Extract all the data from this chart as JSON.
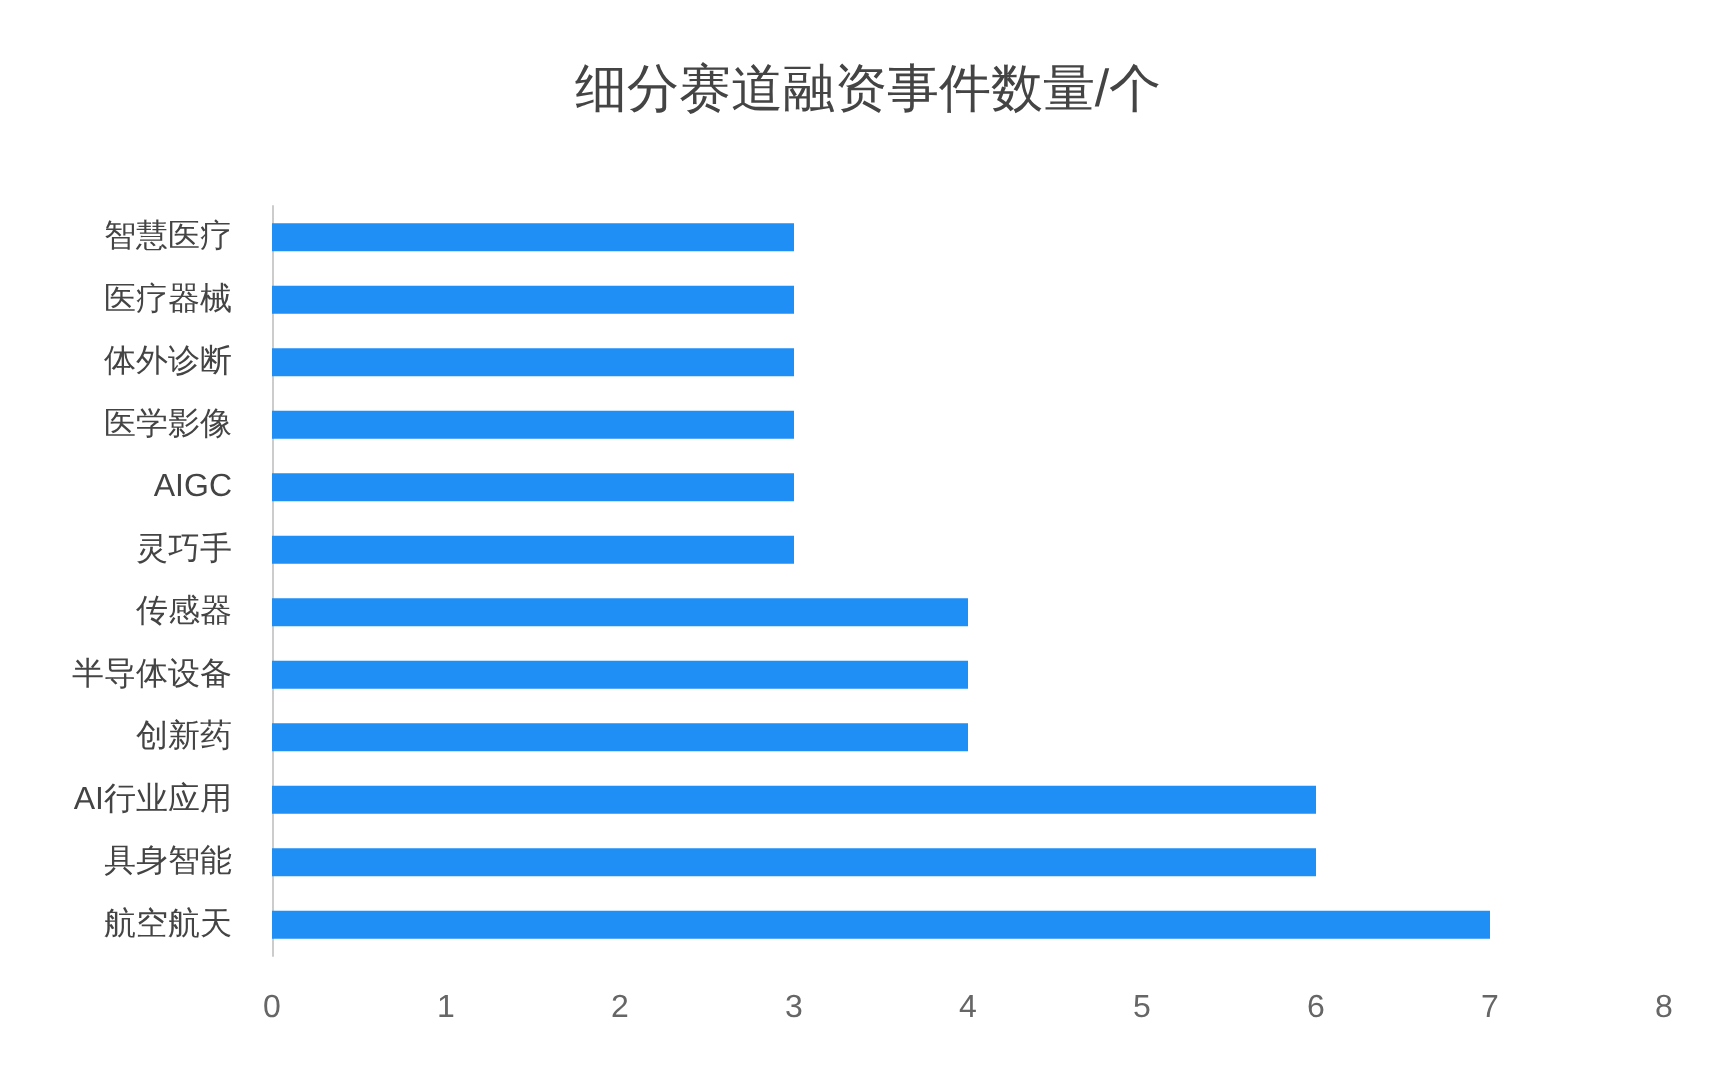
{
  "chart_data": {
    "type": "bar",
    "orientation": "horizontal",
    "title": "细分赛道融资事件数量/个",
    "categories": [
      "智慧医疗",
      "医疗器械",
      "体外诊断",
      "医学影像",
      "AIGC",
      "灵巧手",
      "传感器",
      "半导体设备",
      "创新药",
      "AI行业应用",
      "具身智能",
      "航空航天"
    ],
    "values": [
      3,
      3,
      3,
      3,
      3,
      3,
      4,
      4,
      4,
      6,
      6,
      7
    ],
    "color": "#1f8ef5",
    "xlim": [
      0,
      8
    ],
    "xticks": [
      0,
      1,
      2,
      3,
      4,
      5,
      6,
      7,
      8
    ]
  }
}
